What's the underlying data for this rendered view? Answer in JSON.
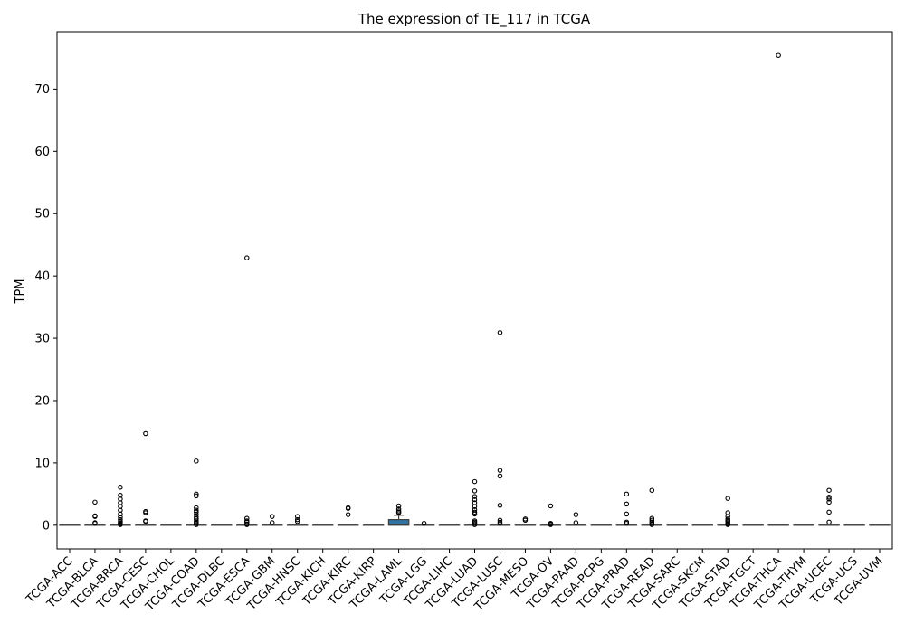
{
  "chart_data": {
    "type": "box",
    "title": "The expression of TE_117 in TCGA",
    "xlabel": "",
    "ylabel": "TPM",
    "ylim": [
      -3.8,
      79.2
    ],
    "yticks": [
      0,
      10,
      20,
      30,
      40,
      50,
      60,
      70
    ],
    "grid": false,
    "legend": "none",
    "box_color": "#3274a1",
    "categories": [
      "TCGA-ACC",
      "TCGA-BLCA",
      "TCGA-BRCA",
      "TCGA-CESC",
      "TCGA-CHOL",
      "TCGA-COAD",
      "TCGA-DLBC",
      "TCGA-ESCA",
      "TCGA-GBM",
      "TCGA-HNSC",
      "TCGA-KICH",
      "TCGA-KIRC",
      "TCGA-KIRP",
      "TCGA-LAML",
      "TCGA-LGG",
      "TCGA-LIHC",
      "TCGA-LUAD",
      "TCGA-LUSC",
      "TCGA-MESO",
      "TCGA-OV",
      "TCGA-PAAD",
      "TCGA-PCPG",
      "TCGA-PRAD",
      "TCGA-READ",
      "TCGA-SARC",
      "TCGA-SKCM",
      "TCGA-STAD",
      "TCGA-TGCT",
      "TCGA-THCA",
      "TCGA-THYM",
      "TCGA-UCEC",
      "TCGA-UCS",
      "TCGA-UVM"
    ],
    "boxes": [
      {
        "q1": 0,
        "median": 0,
        "q3": 0,
        "whisker_low": 0,
        "whisker_high": 0,
        "outliers": []
      },
      {
        "q1": 0,
        "median": 0,
        "q3": 0,
        "whisker_low": 0,
        "whisker_high": 0,
        "outliers": [
          3.7,
          1.5,
          1.4,
          0.4,
          0.3
        ]
      },
      {
        "q1": 0,
        "median": 0,
        "q3": 0,
        "whisker_low": 0,
        "whisker_high": 0,
        "outliers": [
          6.1,
          4.8,
          4.2,
          3.6,
          3.0,
          2.4,
          1.8,
          1.3,
          0.9,
          0.6,
          0.4,
          0.2,
          0.1
        ]
      },
      {
        "q1": 0,
        "median": 0,
        "q3": 0,
        "whisker_low": 0,
        "whisker_high": 0,
        "outliers": [
          14.7,
          2.2,
          2.0,
          0.7,
          0.6
        ]
      },
      {
        "q1": 0,
        "median": 0,
        "q3": 0,
        "whisker_low": 0,
        "whisker_high": 0,
        "outliers": []
      },
      {
        "q1": 0,
        "median": 0,
        "q3": 0,
        "whisker_low": 0,
        "whisker_high": 0,
        "outliers": [
          10.3,
          5.0,
          4.7,
          2.8,
          2.4,
          2.1,
          1.7,
          1.3,
          1.0,
          0.7,
          0.5,
          0.3,
          0.1
        ]
      },
      {
        "q1": 0,
        "median": 0,
        "q3": 0,
        "whisker_low": 0,
        "whisker_high": 0,
        "outliers": []
      },
      {
        "q1": 0,
        "median": 0,
        "q3": 0,
        "whisker_low": 0,
        "whisker_high": 0,
        "outliers": [
          42.9,
          1.1,
          0.7,
          0.5,
          0.2,
          0.1
        ]
      },
      {
        "q1": 0,
        "median": 0,
        "q3": 0,
        "whisker_low": 0,
        "whisker_high": 0,
        "outliers": [
          1.4,
          0.4
        ]
      },
      {
        "q1": 0,
        "median": 0,
        "q3": 0,
        "whisker_low": 0,
        "whisker_high": 0,
        "outliers": [
          1.4,
          0.9,
          0.6
        ]
      },
      {
        "q1": 0,
        "median": 0,
        "q3": 0,
        "whisker_low": 0,
        "whisker_high": 0,
        "outliers": []
      },
      {
        "q1": 0,
        "median": 0,
        "q3": 0,
        "whisker_low": 0,
        "whisker_high": 0,
        "outliers": [
          2.8,
          2.7,
          1.7
        ]
      },
      {
        "q1": 0,
        "median": 0,
        "q3": 0,
        "whisker_low": 0,
        "whisker_high": 0,
        "outliers": []
      },
      {
        "q1": 0,
        "median": 0.1,
        "q3": 0.9,
        "whisker_low": 0,
        "whisker_high": 1.6,
        "outliers": [
          3.1,
          2.6,
          2.3,
          2.1,
          2.0
        ]
      },
      {
        "q1": 0,
        "median": 0,
        "q3": 0,
        "whisker_low": 0,
        "whisker_high": 0,
        "outliers": [
          0.3
        ]
      },
      {
        "q1": 0,
        "median": 0,
        "q3": 0,
        "whisker_low": 0,
        "whisker_high": 0,
        "outliers": []
      },
      {
        "q1": 0,
        "median": 0,
        "q3": 0,
        "whisker_low": 0,
        "whisker_high": 0,
        "outliers": [
          7.0,
          5.5,
          4.6,
          4.1,
          3.6,
          3.0,
          2.5,
          2.1,
          1.8,
          0.7,
          0.5,
          0.3,
          0.1
        ]
      },
      {
        "q1": 0,
        "median": 0,
        "q3": 0,
        "whisker_low": 0,
        "whisker_high": 0,
        "outliers": [
          30.9,
          8.8,
          7.9,
          3.2,
          0.8,
          0.5,
          0.3
        ]
      },
      {
        "q1": 0,
        "median": 0,
        "q3": 0,
        "whisker_low": 0,
        "whisker_high": 0,
        "outliers": [
          1.0,
          0.8
        ]
      },
      {
        "q1": 0,
        "median": 0,
        "q3": 0,
        "whisker_low": 0,
        "whisker_high": 0,
        "outliers": [
          3.1,
          0.3,
          0.2,
          0.1
        ]
      },
      {
        "q1": 0,
        "median": 0,
        "q3": 0,
        "whisker_low": 0,
        "whisker_high": 0,
        "outliers": [
          1.7,
          0.4
        ]
      },
      {
        "q1": 0,
        "median": 0,
        "q3": 0,
        "whisker_low": 0,
        "whisker_high": 0,
        "outliers": []
      },
      {
        "q1": 0,
        "median": 0,
        "q3": 0,
        "whisker_low": 0,
        "whisker_high": 0,
        "outliers": [
          5.0,
          3.4,
          1.8,
          0.5,
          0.3
        ]
      },
      {
        "q1": 0,
        "median": 0,
        "q3": 0,
        "whisker_low": 0,
        "whisker_high": 0,
        "outliers": [
          5.6,
          1.1,
          0.8,
          0.5,
          0.3,
          0.1
        ]
      },
      {
        "q1": 0,
        "median": 0,
        "q3": 0,
        "whisker_low": 0,
        "whisker_high": 0,
        "outliers": []
      },
      {
        "q1": 0,
        "median": 0,
        "q3": 0,
        "whisker_low": 0,
        "whisker_high": 0,
        "outliers": []
      },
      {
        "q1": 0,
        "median": 0,
        "q3": 0,
        "whisker_low": 0,
        "whisker_high": 0,
        "outliers": [
          4.3,
          2.0,
          1.4,
          1.0,
          0.8,
          0.6,
          0.4,
          0.2,
          0.1
        ]
      },
      {
        "q1": 0,
        "median": 0,
        "q3": 0,
        "whisker_low": 0,
        "whisker_high": 0,
        "outliers": []
      },
      {
        "q1": 0,
        "median": 0,
        "q3": 0,
        "whisker_low": 0,
        "whisker_high": 0,
        "outliers": [
          75.4
        ]
      },
      {
        "q1": 0,
        "median": 0,
        "q3": 0,
        "whisker_low": 0,
        "whisker_high": 0,
        "outliers": []
      },
      {
        "q1": 0,
        "median": 0,
        "q3": 0,
        "whisker_low": 0,
        "whisker_high": 0,
        "outliers": [
          5.6,
          4.5,
          4.2,
          3.7,
          2.1,
          0.5
        ]
      },
      {
        "q1": 0,
        "median": 0,
        "q3": 0,
        "whisker_low": 0,
        "whisker_high": 0,
        "outliers": []
      },
      {
        "q1": 0,
        "median": 0,
        "q3": 0,
        "whisker_low": 0,
        "whisker_high": 0,
        "outliers": []
      }
    ]
  }
}
